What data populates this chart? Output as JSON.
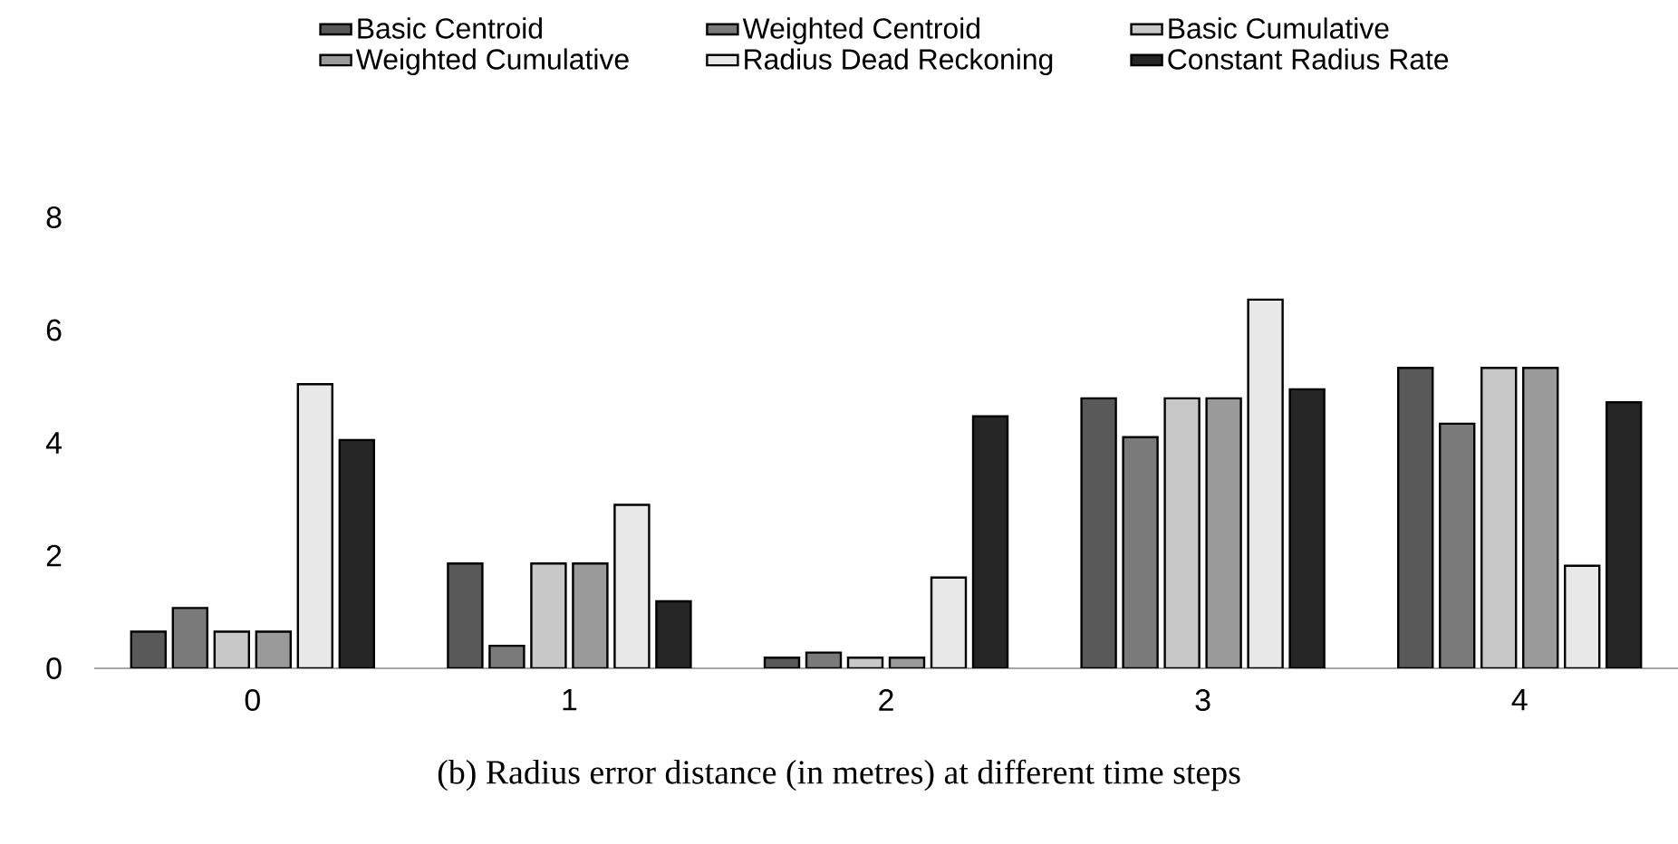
{
  "chart_data": {
    "type": "bar",
    "annotations": [
      "(b) Radius error distance (in metres) at different time steps"
    ],
    "categories": [
      "0",
      "1",
      "2",
      "3",
      "4"
    ],
    "series": [
      {
        "name": "Basic Centroid",
        "color": "#595959",
        "values": [
          0.65,
          1.86,
          0.19,
          4.79,
          5.33
        ]
      },
      {
        "name": "Weighted Centroid",
        "color": "#7a7a7a",
        "values": [
          1.07,
          0.4,
          0.28,
          4.1,
          4.34
        ]
      },
      {
        "name": "Basic Cumulative",
        "color": "#c8c8c8",
        "values": [
          0.65,
          1.86,
          0.19,
          4.79,
          5.33
        ]
      },
      {
        "name": "Weighted Cumulative",
        "color": "#9a9a9a",
        "values": [
          0.65,
          1.86,
          0.19,
          4.79,
          5.33
        ]
      },
      {
        "name": "Radius Dead Reckoning",
        "color": "#e8e8e8",
        "values": [
          5.04,
          2.9,
          1.61,
          6.54,
          1.82
        ]
      },
      {
        "name": "Constant Radius Rate",
        "color": "#262626",
        "values": [
          4.05,
          1.19,
          4.47,
          4.95,
          4.72
        ]
      }
    ],
    "ylim": [
      0,
      8
    ],
    "yticks": [
      0,
      2,
      4,
      6,
      8
    ],
    "grid": false,
    "legend": "top"
  }
}
